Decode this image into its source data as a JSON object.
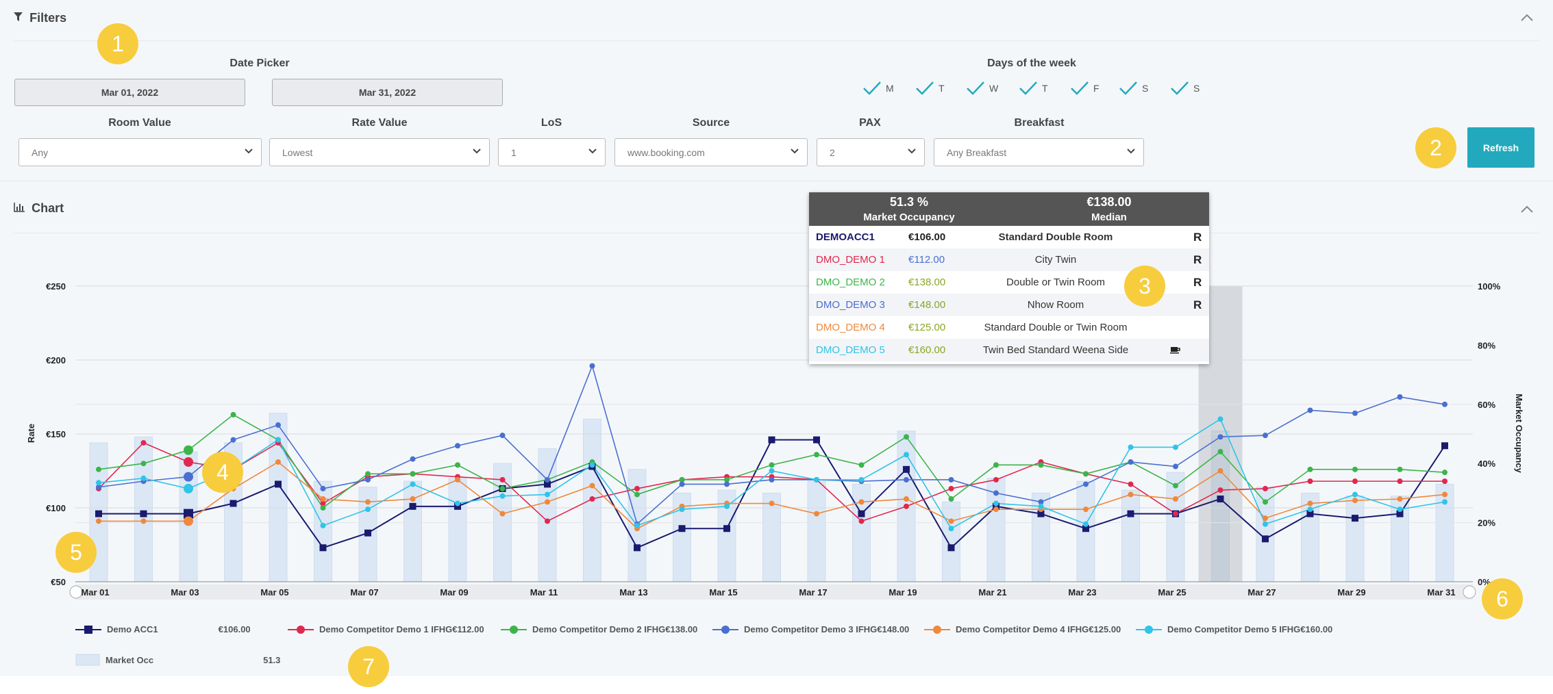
{
  "filters": {
    "title": "Filters",
    "date_picker": {
      "label": "Date Picker",
      "start": "Mar 01, 2022",
      "end": "Mar 31, 2022"
    },
    "days_of_week": {
      "label": "Days of the week",
      "days": [
        "M",
        "T",
        "W",
        "T",
        "F",
        "S",
        "S"
      ]
    },
    "room_value": {
      "label": "Room Value",
      "value": "Any"
    },
    "rate_value": {
      "label": "Rate Value",
      "value": "Lowest"
    },
    "los": {
      "label": "LoS",
      "value": "1"
    },
    "source": {
      "label": "Source",
      "value": "www.booking.com"
    },
    "pax": {
      "label": "PAX",
      "value": "2"
    },
    "breakfast": {
      "label": "Breakfast",
      "value": "Any Breakfast"
    },
    "refresh_label": "Refresh"
  },
  "chart_section": {
    "title": "Chart"
  },
  "callouts": [
    "1",
    "2",
    "3",
    "4",
    "5",
    "6",
    "7"
  ],
  "tooltip": {
    "occupancy": "51.3 %",
    "occupancy_label": "Market Occupancy",
    "median": "€138.00",
    "median_label": "Median",
    "rows": [
      {
        "name": "DEMOACC1",
        "price": "€106.00",
        "room": "Standard Double Room",
        "flag": "R",
        "name_color": "#1a1a6e",
        "price_color": "#222"
      },
      {
        "name": "DMO_DEMO 1",
        "price": "€112.00",
        "room": "City Twin",
        "flag": "R",
        "name_color": "#e0284f",
        "price_color": "#4a6fd0"
      },
      {
        "name": "DMO_DEMO 2",
        "price": "€138.00",
        "room": "Double or Twin Room",
        "flag": "R",
        "name_color": "#3bb54a",
        "price_color": "#8aa624"
      },
      {
        "name": "DMO_DEMO 3",
        "price": "€148.00",
        "room": "Nhow Room",
        "flag": "R",
        "name_color": "#4a6fd0",
        "price_color": "#8aa624"
      },
      {
        "name": "DMO_DEMO 4",
        "price": "€125.00",
        "room": "Standard Double or Twin Room",
        "flag": "",
        "name_color": "#f0883a",
        "price_color": "#8aa624"
      },
      {
        "name": "DMO_DEMO 5",
        "price": "€160.00",
        "room": "Twin Bed Standard Weena Side",
        "flag": "",
        "name_color": "#2fc4e8",
        "price_color": "#8aa624"
      }
    ]
  },
  "chart_data": {
    "type": "line",
    "x": [
      "Mar 01",
      "Mar 02",
      "Mar 03",
      "Mar 04",
      "Mar 05",
      "Mar 06",
      "Mar 07",
      "Mar 08",
      "Mar 09",
      "Mar 10",
      "Mar 11",
      "Mar 12",
      "Mar 13",
      "Mar 14",
      "Mar 15",
      "Mar 16",
      "Mar 17",
      "Mar 18",
      "Mar 19",
      "Mar 20",
      "Mar 21",
      "Mar 22",
      "Mar 23",
      "Mar 24",
      "Mar 25",
      "Mar 26",
      "Mar 27",
      "Mar 28",
      "Mar 29",
      "Mar 30",
      "Mar 31"
    ],
    "x_tick_labels": [
      "Mar 01",
      "Mar 03",
      "Mar 05",
      "Mar 07",
      "Mar 09",
      "Mar 11",
      "Mar 13",
      "Mar 15",
      "Mar 17",
      "Mar 19",
      "Mar 21",
      "Mar 23",
      "Mar 25",
      "Mar 27",
      "Mar 29",
      "Mar 31"
    ],
    "ylabel": "Rate",
    "y2label": "Market Occupancy",
    "ylim": [
      50,
      250
    ],
    "y_ticks": [
      "€50",
      "€100",
      "€150",
      "€200",
      "€250"
    ],
    "y2lim": [
      0,
      100
    ],
    "y2_ticks": [
      "0%",
      "20%",
      "40%",
      "60%",
      "80%",
      "100%"
    ],
    "highlight_x": "Mar 26",
    "series": [
      {
        "name": "Demo ACC1",
        "legend_value": "€106.00",
        "color": "#1a1a6e",
        "marker": "square",
        "values": [
          96,
          96,
          96,
          103,
          116,
          73,
          83,
          101,
          101,
          113,
          116,
          128,
          73,
          86,
          86,
          146,
          146,
          96,
          126,
          73,
          101,
          96,
          86,
          96,
          96,
          106,
          79,
          96,
          93,
          96,
          142
        ]
      },
      {
        "name": "Demo Competitor Demo 1 IFHG€112.00",
        "legend_value": "",
        "color": "#e0284f",
        "marker": "circle",
        "values": [
          113,
          144,
          131,
          126,
          144,
          103,
          121,
          123,
          121,
          119,
          91,
          106,
          113,
          119,
          121,
          121,
          119,
          91,
          101,
          113,
          119,
          131,
          123,
          116,
          96,
          112,
          113,
          118,
          118,
          118,
          118
        ]
      },
      {
        "name": "Demo Competitor Demo 2 IFHG€138.00",
        "legend_value": "",
        "color": "#3bb54a",
        "marker": "circle",
        "values": [
          126,
          130,
          139,
          163,
          146,
          100,
          123,
          123,
          129,
          113,
          119,
          131,
          109,
          119,
          119,
          129,
          136,
          129,
          148,
          106,
          129,
          129,
          123,
          131,
          115,
          138,
          104,
          126,
          126,
          126,
          124
        ]
      },
      {
        "name": "Demo Competitor Demo 3 IFHG€148.00",
        "legend_value": "",
        "color": "#4a6fd0",
        "marker": "circle",
        "values": [
          114,
          118,
          121,
          146,
          156,
          113,
          119,
          133,
          142,
          149,
          119,
          196,
          89,
          116,
          116,
          119,
          119,
          118,
          119,
          119,
          110,
          104,
          116,
          131,
          128,
          148,
          149,
          166,
          164,
          175,
          170
        ]
      },
      {
        "name": "Demo Competitor Demo 4 IFHG€125.00",
        "legend_value": "",
        "color": "#f0883a",
        "marker": "circle",
        "values": [
          91,
          91,
          91,
          113,
          131,
          106,
          104,
          106,
          119,
          96,
          104,
          115,
          86,
          101,
          103,
          103,
          96,
          104,
          106,
          91,
          99,
          99,
          99,
          109,
          106,
          125,
          93,
          103,
          105,
          106,
          109
        ]
      },
      {
        "name": "Demo Competitor Demo 5 IFHG€160.00",
        "legend_value": "",
        "color": "#2fc4e8",
        "marker": "circle",
        "values": [
          117,
          120,
          113,
          126,
          146,
          88,
          99,
          116,
          103,
          108,
          109,
          129,
          88,
          99,
          101,
          125,
          119,
          119,
          136,
          86,
          103,
          101,
          89,
          141,
          141,
          160,
          89,
          99,
          109,
          99,
          104
        ]
      }
    ],
    "bars": {
      "name": "Market Occ",
      "legend_value": "51.3",
      "color": "#dbe7f5",
      "values": [
        47,
        49,
        44,
        47,
        57,
        34,
        32,
        34,
        35,
        40,
        45,
        55,
        38,
        30,
        31,
        30,
        34,
        33,
        51,
        27,
        35,
        30,
        34,
        31,
        37,
        51,
        32,
        30,
        29,
        29,
        33
      ]
    }
  }
}
